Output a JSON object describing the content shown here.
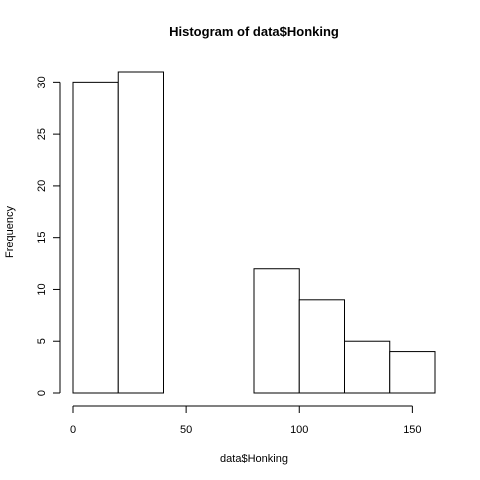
{
  "chart_data": {
    "type": "bar",
    "title": "Histogram of data$Honking",
    "xlabel": "data$Honking",
    "ylabel": "Frequency",
    "bins": [
      {
        "start": 0,
        "end": 20,
        "count": 30
      },
      {
        "start": 20,
        "end": 40,
        "count": 31
      },
      {
        "start": 40,
        "end": 60,
        "count": 0
      },
      {
        "start": 60,
        "end": 80,
        "count": 0
      },
      {
        "start": 80,
        "end": 100,
        "count": 12
      },
      {
        "start": 100,
        "end": 120,
        "count": 9
      },
      {
        "start": 120,
        "end": 140,
        "count": 5
      },
      {
        "start": 140,
        "end": 160,
        "count": 4
      }
    ],
    "xlim": [
      0,
      160
    ],
    "ylim": [
      0,
      31
    ],
    "xticks": [
      0,
      50,
      100,
      150
    ],
    "yticks": [
      0,
      5,
      10,
      15,
      20,
      25,
      30
    ],
    "bar_fill": "#ffffff",
    "bar_stroke": "#000000",
    "grid": false,
    "legend": "none"
  }
}
